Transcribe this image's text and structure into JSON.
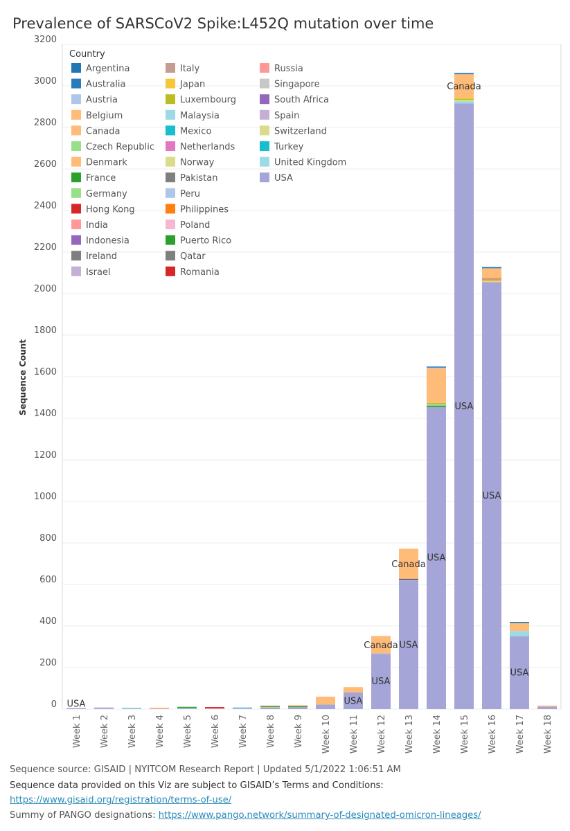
{
  "title": "Prevalence of SARSCoV2 Spike:L452Q mutation  over time",
  "chart_data": {
    "type": "stacked-bar",
    "title": "Prevalence of SARSCoV2 Spike:L452Q mutation  over time",
    "xlabel": "",
    "ylabel": "Sequence Count",
    "ylim": [
      0,
      3200
    ],
    "yticks": [
      0,
      200,
      400,
      600,
      800,
      1000,
      1200,
      1400,
      1600,
      1800,
      2000,
      2200,
      2400,
      2600,
      2800,
      3000,
      3200
    ],
    "categories": [
      "Week 1",
      "Week 2",
      "Week 3",
      "Week 4",
      "Week 5",
      "Week 6",
      "Week 7",
      "Week 8",
      "Week 9",
      "Week 10",
      "Week 11",
      "Week 12",
      "Week 13",
      "Week 14",
      "Week 15",
      "Week 16",
      "Week 17",
      "Week 18"
    ],
    "legend_title": "Country",
    "legend": [
      {
        "name": "Argentina",
        "color": "#1f77b4"
      },
      {
        "name": "Australia",
        "color": "#2b7bba"
      },
      {
        "name": "Austria",
        "color": "#aec7e8"
      },
      {
        "name": "Belgium",
        "color": "#ffbb78"
      },
      {
        "name": "Canada",
        "color": "#ffbb78"
      },
      {
        "name": "Czech Republic",
        "color": "#98df8a"
      },
      {
        "name": "Denmark",
        "color": "#ffbb78"
      },
      {
        "name": "France",
        "color": "#2ca02c"
      },
      {
        "name": "Germany",
        "color": "#98df8a"
      },
      {
        "name": "Hong Kong",
        "color": "#d62728"
      },
      {
        "name": "India",
        "color": "#ff9896"
      },
      {
        "name": "Indonesia",
        "color": "#9467bd"
      },
      {
        "name": "Ireland",
        "color": "#7f7f7f"
      },
      {
        "name": "Israel",
        "color": "#c5b0d5"
      },
      {
        "name": "Italy",
        "color": "#c49c94"
      },
      {
        "name": "Japan",
        "color": "#f7c73b"
      },
      {
        "name": "Luxembourg",
        "color": "#bcbd22"
      },
      {
        "name": "Malaysia",
        "color": "#9edae5"
      },
      {
        "name": "Mexico",
        "color": "#17becf"
      },
      {
        "name": "Netherlands",
        "color": "#e377c2"
      },
      {
        "name": "Norway",
        "color": "#dbdb8d"
      },
      {
        "name": "Pakistan",
        "color": "#7f7f7f"
      },
      {
        "name": "Peru",
        "color": "#aec7e8"
      },
      {
        "name": "Philippines",
        "color": "#ff7f0e"
      },
      {
        "name": "Poland",
        "color": "#f7b6d2"
      },
      {
        "name": "Puerto Rico",
        "color": "#2ca02c"
      },
      {
        "name": "Qatar",
        "color": "#7f7f7f"
      },
      {
        "name": "Romania",
        "color": "#d62728"
      },
      {
        "name": "Russia",
        "color": "#ff9896"
      },
      {
        "name": "Singapore",
        "color": "#c7c7c7"
      },
      {
        "name": "South Africa",
        "color": "#9467bd"
      },
      {
        "name": "Spain",
        "color": "#c5b0d5"
      },
      {
        "name": "Switzerland",
        "color": "#dbdb8d"
      },
      {
        "name": "Turkey",
        "color": "#17becf"
      },
      {
        "name": "United Kingdom",
        "color": "#9edae5"
      },
      {
        "name": "USA",
        "color": "#a5a5d7"
      }
    ],
    "bars": [
      {
        "category": "Week 1",
        "segments": [
          {
            "country": "USA",
            "value": 1
          }
        ],
        "labels": [
          {
            "text": "USA",
            "value": 25
          }
        ]
      },
      {
        "category": "Week 2",
        "segments": [
          {
            "country": "USA",
            "value": 3
          },
          {
            "country": "Spain",
            "value": 4
          }
        ],
        "labels": []
      },
      {
        "category": "Week 3",
        "segments": [
          {
            "country": "USA",
            "value": 2
          },
          {
            "country": "United Kingdom",
            "value": 3
          }
        ],
        "labels": []
      },
      {
        "category": "Week 4",
        "segments": [
          {
            "country": "Spain",
            "value": 2
          },
          {
            "country": "Canada",
            "value": 3
          }
        ],
        "labels": []
      },
      {
        "category": "Week 5",
        "segments": [
          {
            "country": "USA",
            "value": 3
          },
          {
            "country": "United Kingdom",
            "value": 3
          },
          {
            "country": "France",
            "value": 3
          }
        ],
        "labels": []
      },
      {
        "category": "Week 6",
        "segments": [
          {
            "country": "Spain",
            "value": 2
          },
          {
            "country": "India",
            "value": 3
          },
          {
            "country": "Hong Kong",
            "value": 2
          }
        ],
        "labels": []
      },
      {
        "category": "Week 7",
        "segments": [
          {
            "country": "USA",
            "value": 4
          },
          {
            "country": "United Kingdom",
            "value": 3
          }
        ],
        "labels": []
      },
      {
        "category": "Week 8",
        "segments": [
          {
            "country": "USA",
            "value": 8
          },
          {
            "country": "Denmark",
            "value": 3
          },
          {
            "country": "France",
            "value": 3
          }
        ],
        "labels": []
      },
      {
        "category": "Week 9",
        "segments": [
          {
            "country": "USA",
            "value": 10
          },
          {
            "country": "France",
            "value": 4
          },
          {
            "country": "Belgium",
            "value": 4
          }
        ],
        "labels": []
      },
      {
        "category": "Week 10",
        "segments": [
          {
            "country": "USA",
            "value": 22
          },
          {
            "country": "Canada",
            "value": 38
          }
        ],
        "labels": []
      },
      {
        "category": "Week 11",
        "segments": [
          {
            "country": "USA",
            "value": 80
          },
          {
            "country": "Canada",
            "value": 26
          }
        ],
        "labels": [
          {
            "text": "USA",
            "value": 38
          }
        ]
      },
      {
        "category": "Week 12",
        "segments": [
          {
            "country": "USA",
            "value": 265
          },
          {
            "country": "Austria",
            "value": 3
          },
          {
            "country": "Canada",
            "value": 84
          }
        ],
        "labels": [
          {
            "text": "USA",
            "value": 133
          },
          {
            "text": "Canada",
            "value": 307
          }
        ]
      },
      {
        "category": "Week 13",
        "segments": [
          {
            "country": "USA",
            "value": 618
          },
          {
            "country": "United Kingdom",
            "value": 3
          },
          {
            "country": "Hong Kong",
            "value": 3
          },
          {
            "country": "Argentina",
            "value": 3
          },
          {
            "country": "Canada",
            "value": 145
          }
        ],
        "labels": [
          {
            "text": "USA",
            "value": 308
          },
          {
            "text": "Canada",
            "value": 696
          }
        ]
      },
      {
        "category": "Week 14",
        "segments": [
          {
            "country": "USA",
            "value": 1455
          },
          {
            "country": "France",
            "value": 6
          },
          {
            "country": "Czech Republic",
            "value": 8
          },
          {
            "country": "Luxembourg",
            "value": 5
          },
          {
            "country": "Canada",
            "value": 166
          },
          {
            "country": "Austria",
            "value": 4
          },
          {
            "country": "Australia",
            "value": 4
          }
        ],
        "labels": [
          {
            "text": "USA",
            "value": 728
          }
        ]
      },
      {
        "category": "Week 15",
        "segments": [
          {
            "country": "USA",
            "value": 2915
          },
          {
            "country": "United Kingdom",
            "value": 10
          },
          {
            "country": "Switzerland",
            "value": 8
          },
          {
            "country": "Luxembourg",
            "value": 6
          },
          {
            "country": "Japan",
            "value": 5
          },
          {
            "country": "Canada",
            "value": 112
          },
          {
            "country": "Australia",
            "value": 6
          }
        ],
        "labels": [
          {
            "text": "USA",
            "value": 1457
          },
          {
            "text": "Canada",
            "value": 2997
          }
        ]
      },
      {
        "category": "Week 16",
        "segments": [
          {
            "country": "USA",
            "value": 2055
          },
          {
            "country": "Switzerland",
            "value": 8
          },
          {
            "country": "Philippines",
            "value": 6
          },
          {
            "country": "Italy",
            "value": 6
          },
          {
            "country": "Canada",
            "value": 47
          },
          {
            "country": "Australia",
            "value": 6
          }
        ],
        "labels": [
          {
            "text": "USA",
            "value": 1027
          }
        ]
      },
      {
        "category": "Week 17",
        "segments": [
          {
            "country": "USA",
            "value": 350
          },
          {
            "country": "United Kingdom",
            "value": 26
          },
          {
            "country": "Canada",
            "value": 38
          },
          {
            "country": "Australia",
            "value": 6
          }
        ],
        "labels": [
          {
            "text": "USA",
            "value": 175
          }
        ]
      },
      {
        "category": "Week 18",
        "segments": [
          {
            "country": "USA",
            "value": 12
          },
          {
            "country": "Canada",
            "value": 4
          }
        ],
        "labels": []
      }
    ]
  },
  "footer": {
    "line1": "Sequence source: GISAID  | NYITCOM  Research Report | Updated  5/1/2022 1:06:51 AM",
    "line2": "Sequence data provided on this Viz are subject to GISAID’s Terms and Conditions:",
    "line3_link": "https://www.gisaid.org/registration/terms-of-use/",
    "line4_prefix": "Summy of PANGO designations: ",
    "line4_link": "https://www.pango.network/summary-of-designated-omicron-lineages/"
  }
}
